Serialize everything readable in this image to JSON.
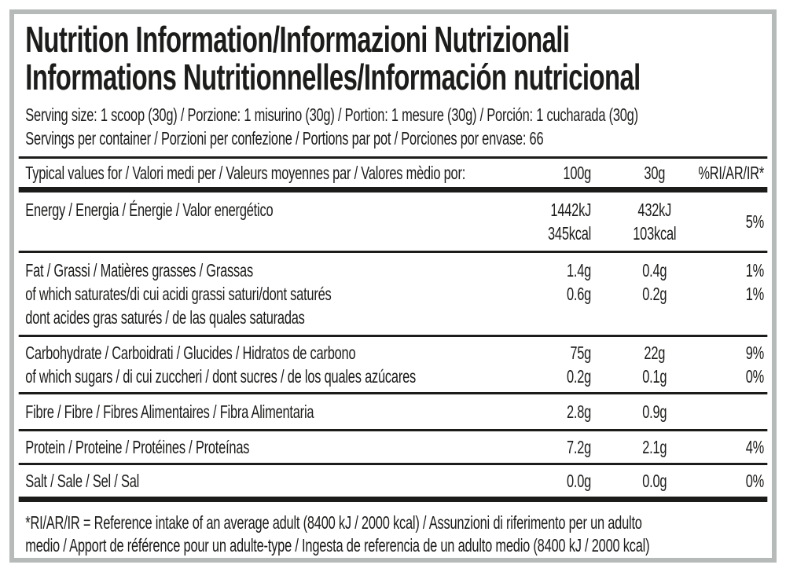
{
  "colors": {
    "text": "#1c1c1a",
    "frame_border": "#b6bbb9",
    "background": "#ffffff"
  },
  "title": {
    "line1": "Nutrition Information/Informazioni Nutrizionali",
    "line2": "Informations Nutritionnelles/Información nutricional"
  },
  "serving": {
    "size_line": "Serving size: 1 scoop (30g) / Porzione: 1 misurino (30g) / Portion: 1 mesure (30g) / Porción: 1 cucharada (30g)",
    "per_container_line": "Servings per container / Porzioni per confezione / Portions par pot / Porciones por envase: 66"
  },
  "table": {
    "header": {
      "label": "Typical values for / Valori medi per / Valeurs moyennes par / Valores mèdio por:",
      "col_100g": "100g",
      "col_30g": "30g",
      "col_ri": "%RI/AR/IR*"
    },
    "rows": [
      {
        "id": "energy",
        "label": [
          "Energy / Energia / Énergie / Valor energético"
        ],
        "per_100g": [
          "1442kJ",
          "345kcal"
        ],
        "per_30g": [
          "432kJ",
          "103kcal"
        ],
        "ri": [
          "5%"
        ]
      },
      {
        "id": "fat",
        "label": [
          "Fat / Grassi / Matières grasses / Grassas",
          "of which saturates/di cui acidi grassi saturi/dont saturés",
          "dont acides gras saturés / de las quales saturadas"
        ],
        "per_100g": [
          "1.4g",
          "0.6g"
        ],
        "per_30g": [
          "0.4g",
          "0.2g"
        ],
        "ri": [
          "1%",
          "1%"
        ]
      },
      {
        "id": "carbohydrate",
        "label": [
          "Carbohydrate / Carboidrati / Glucides / Hidratos de carbono",
          "of which sugars / di cui zuccheri / dont sucres / de los quales azúcares"
        ],
        "per_100g": [
          "75g",
          "0.2g"
        ],
        "per_30g": [
          "22g",
          "0.1g"
        ],
        "ri": [
          "9%",
          "0%"
        ]
      },
      {
        "id": "fibre",
        "label": [
          "Fibre / Fibre / Fibres Alimentaires / Fibra Alimentaria"
        ],
        "per_100g": [
          "2.8g"
        ],
        "per_30g": [
          "0.9g"
        ],
        "ri": []
      },
      {
        "id": "protein",
        "label": [
          "Protein / Proteine / Protéines / Proteínas"
        ],
        "per_100g": [
          "7.2g"
        ],
        "per_30g": [
          "2.1g"
        ],
        "ri": [
          "4%"
        ]
      },
      {
        "id": "salt",
        "label": [
          "Salt / Sale / Sel / Sal"
        ],
        "per_100g": [
          "0.0g"
        ],
        "per_30g": [
          "0.0g"
        ],
        "ri": [
          "0%"
        ]
      }
    ]
  },
  "footnote": {
    "line1": "*RI/AR/IR = Reference intake of an average adult (8400 kJ / 2000 kcal)  / Assunzioni di riferimento per un adulto",
    "line2": "medio / Apport de référence pour un adulte-type / Ingesta de referencia de un adulto medio (8400 kJ / 2000 kcal)"
  }
}
